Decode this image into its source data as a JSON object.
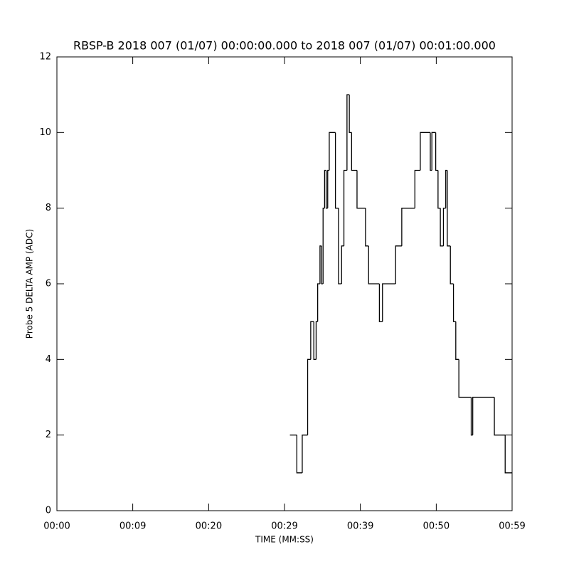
{
  "chart_data": {
    "type": "line",
    "step": "post",
    "title": "RBSP-B 2018 007 (01/07) 00:00:00.000 to 2018 007 (01/07) 00:01:00.000",
    "x_label": "TIME (MM:SS)",
    "y_label": "Probe 5 DELTA AMP (ADC)",
    "color": "#000000",
    "xlim": [
      0,
      59
    ],
    "ylim": [
      0,
      12
    ],
    "xticks": [
      {
        "value": 0,
        "label": "00:00"
      },
      {
        "value": 9.83,
        "label": "00:09"
      },
      {
        "value": 19.67,
        "label": "00:20"
      },
      {
        "value": 29.5,
        "label": "00:29"
      },
      {
        "value": 39.33,
        "label": "00:39"
      },
      {
        "value": 49.17,
        "label": "00:50"
      },
      {
        "value": 59,
        "label": "00:59"
      }
    ],
    "yticks": [
      0,
      2,
      4,
      6,
      8,
      10,
      12
    ],
    "x": [
      30.2,
      31.1,
      31.8,
      32.5,
      32.9,
      33.3,
      33.6,
      33.8,
      34.1,
      34.3,
      34.5,
      34.7,
      34.9,
      35.1,
      35.3,
      36.1,
      36.5,
      36.9,
      37.2,
      37.6,
      37.9,
      38.2,
      38.9,
      40.0,
      40.4,
      41.8,
      42.2,
      43.9,
      44.7,
      46.4,
      47.1,
      48.4,
      48.6,
      49.1,
      49.4,
      49.7,
      50.1,
      50.4,
      50.6,
      51.0,
      51.4,
      51.7,
      52.1,
      53.7,
      53.9,
      56.7,
      58.1,
      59.0
    ],
    "values": [
      2,
      1,
      2,
      4,
      5,
      4,
      5,
      6,
      7,
      6,
      8,
      9,
      8,
      9,
      10,
      8,
      6,
      7,
      9,
      11,
      10,
      9,
      8,
      7,
      6,
      5,
      6,
      7,
      8,
      9,
      10,
      9,
      10,
      9,
      8,
      7,
      8,
      9,
      7,
      6,
      5,
      4,
      3,
      2,
      3,
      2,
      1,
      1
    ]
  }
}
